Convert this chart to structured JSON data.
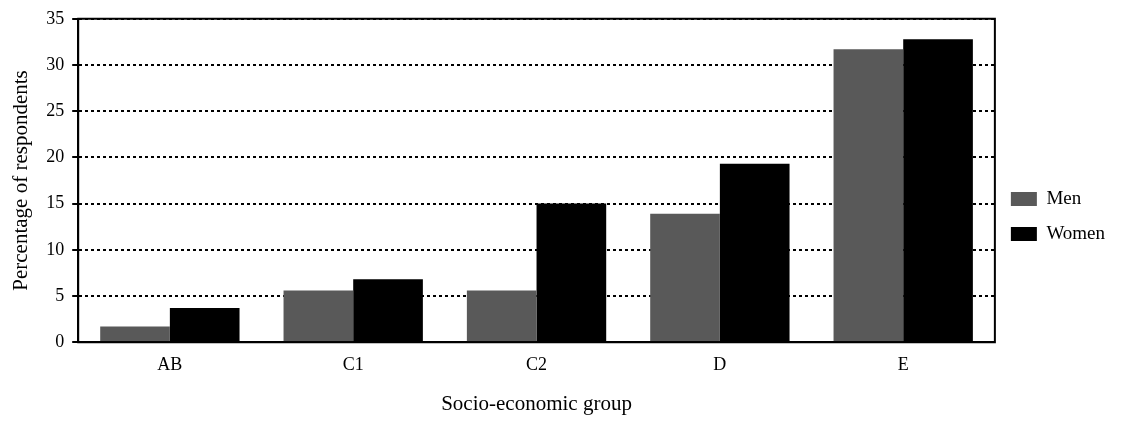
{
  "chart_data": {
    "type": "bar",
    "xlabel": "Socio-economic group",
    "ylabel": "Percentage of respondents",
    "categories": [
      "AB",
      "C1",
      "C2",
      "D",
      "E"
    ],
    "series": [
      {
        "name": "Men",
        "color": "#595959",
        "values": [
          1.7,
          5.6,
          5.6,
          13.9,
          31.7
        ]
      },
      {
        "name": "Women",
        "color": "#000000",
        "values": [
          3.7,
          6.8,
          15.0,
          19.3,
          32.8
        ]
      }
    ],
    "ylim": [
      0,
      35
    ],
    "yticks": [
      0,
      5,
      10,
      15,
      20,
      25,
      30,
      35
    ],
    "grid": "y",
    "legend": "right"
  }
}
